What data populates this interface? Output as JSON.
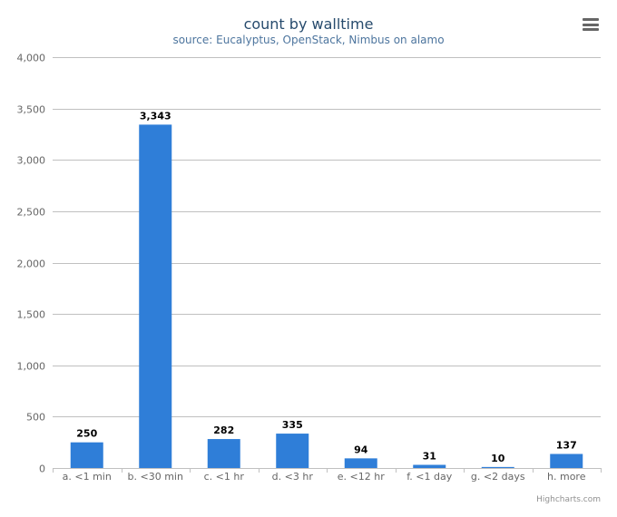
{
  "chart_data": {
    "type": "bar",
    "title": "count by walltime",
    "subtitle": "source: Eucalyptus, OpenStack, Nimbus on alamo",
    "categories": [
      "a. <1 min",
      "b. <30 min",
      "c. <1 hr",
      "d. <3 hr",
      "e. <12 hr",
      "f. <1 day",
      "g. <2 days",
      "h. more"
    ],
    "values": [
      250,
      3343,
      282,
      335,
      94,
      31,
      10,
      137
    ],
    "data_labels": [
      "250",
      "3,343",
      "282",
      "335",
      "94",
      "31",
      "10",
      "137"
    ],
    "ylim": [
      0,
      4000
    ],
    "yticks": [
      0,
      500,
      1000,
      1500,
      2000,
      2500,
      3000,
      3500,
      4000
    ],
    "ytick_labels": [
      "0",
      "500",
      "1,000",
      "1,500",
      "2,000",
      "2,500",
      "3,000",
      "3,500",
      "4,000"
    ],
    "xlabel": "",
    "ylabel": "",
    "grid": true,
    "legend": false,
    "bar_color": "#2f7ed8",
    "credits": "Highcharts.com"
  },
  "colors": {
    "title": "#274b6d",
    "subtitle": "#4d759e",
    "grid": "#c0c0c0",
    "axis_label": "#666666",
    "data_label": "#000000",
    "credits": "#909090"
  },
  "icons": {
    "menu": "hamburger-menu-icon"
  }
}
